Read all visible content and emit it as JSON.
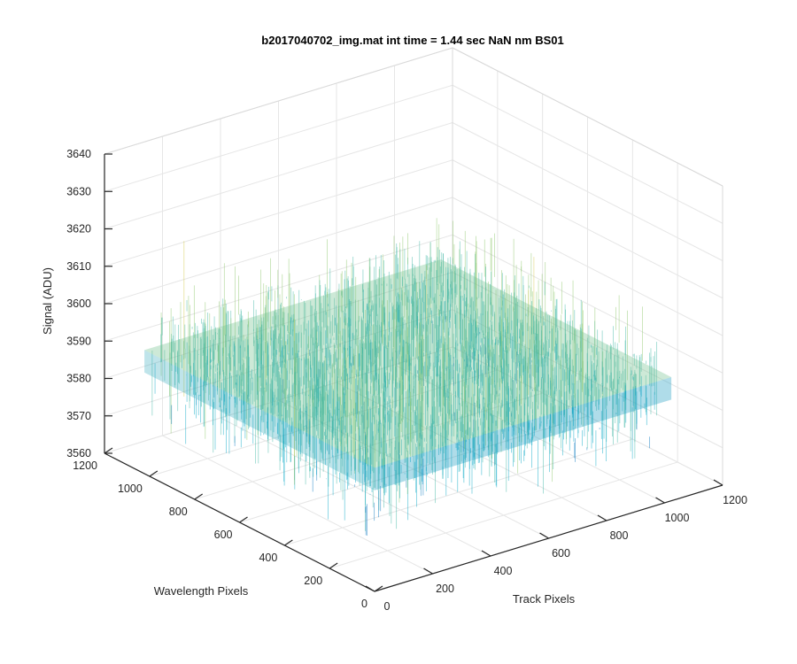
{
  "chart_data": {
    "type": "surface",
    "title": "b2017040702_img.mat int time = 1.44 sec  NaN nm BS01",
    "xlabel": "Track Pixels",
    "ylabel": "Wavelength Pixels",
    "zlabel": "Signal (ADU)",
    "xlim": [
      0,
      1200
    ],
    "ylim": [
      0,
      1200
    ],
    "zlim": [
      3560,
      3640
    ],
    "x_ticks": [
      "0",
      "200",
      "400",
      "600",
      "800",
      "1000",
      "1200"
    ],
    "y_ticks": [
      "0",
      "200",
      "400",
      "600",
      "800",
      "1000",
      "1200"
    ],
    "z_ticks": [
      "3560",
      "3570",
      "3580",
      "3590",
      "3600",
      "3610",
      "3620",
      "3630",
      "3640"
    ],
    "surface_extent": {
      "x": [
        1,
        1024
      ],
      "y": [
        1,
        1024
      ]
    },
    "surface_level": {
      "mean": 3590,
      "min": 3572,
      "max": 3625
    },
    "colormap": [
      "#0072bd",
      "#00a6c4",
      "#3cb7a4",
      "#8cc66a",
      "#d4c84a"
    ],
    "grid": true,
    "box": true
  }
}
